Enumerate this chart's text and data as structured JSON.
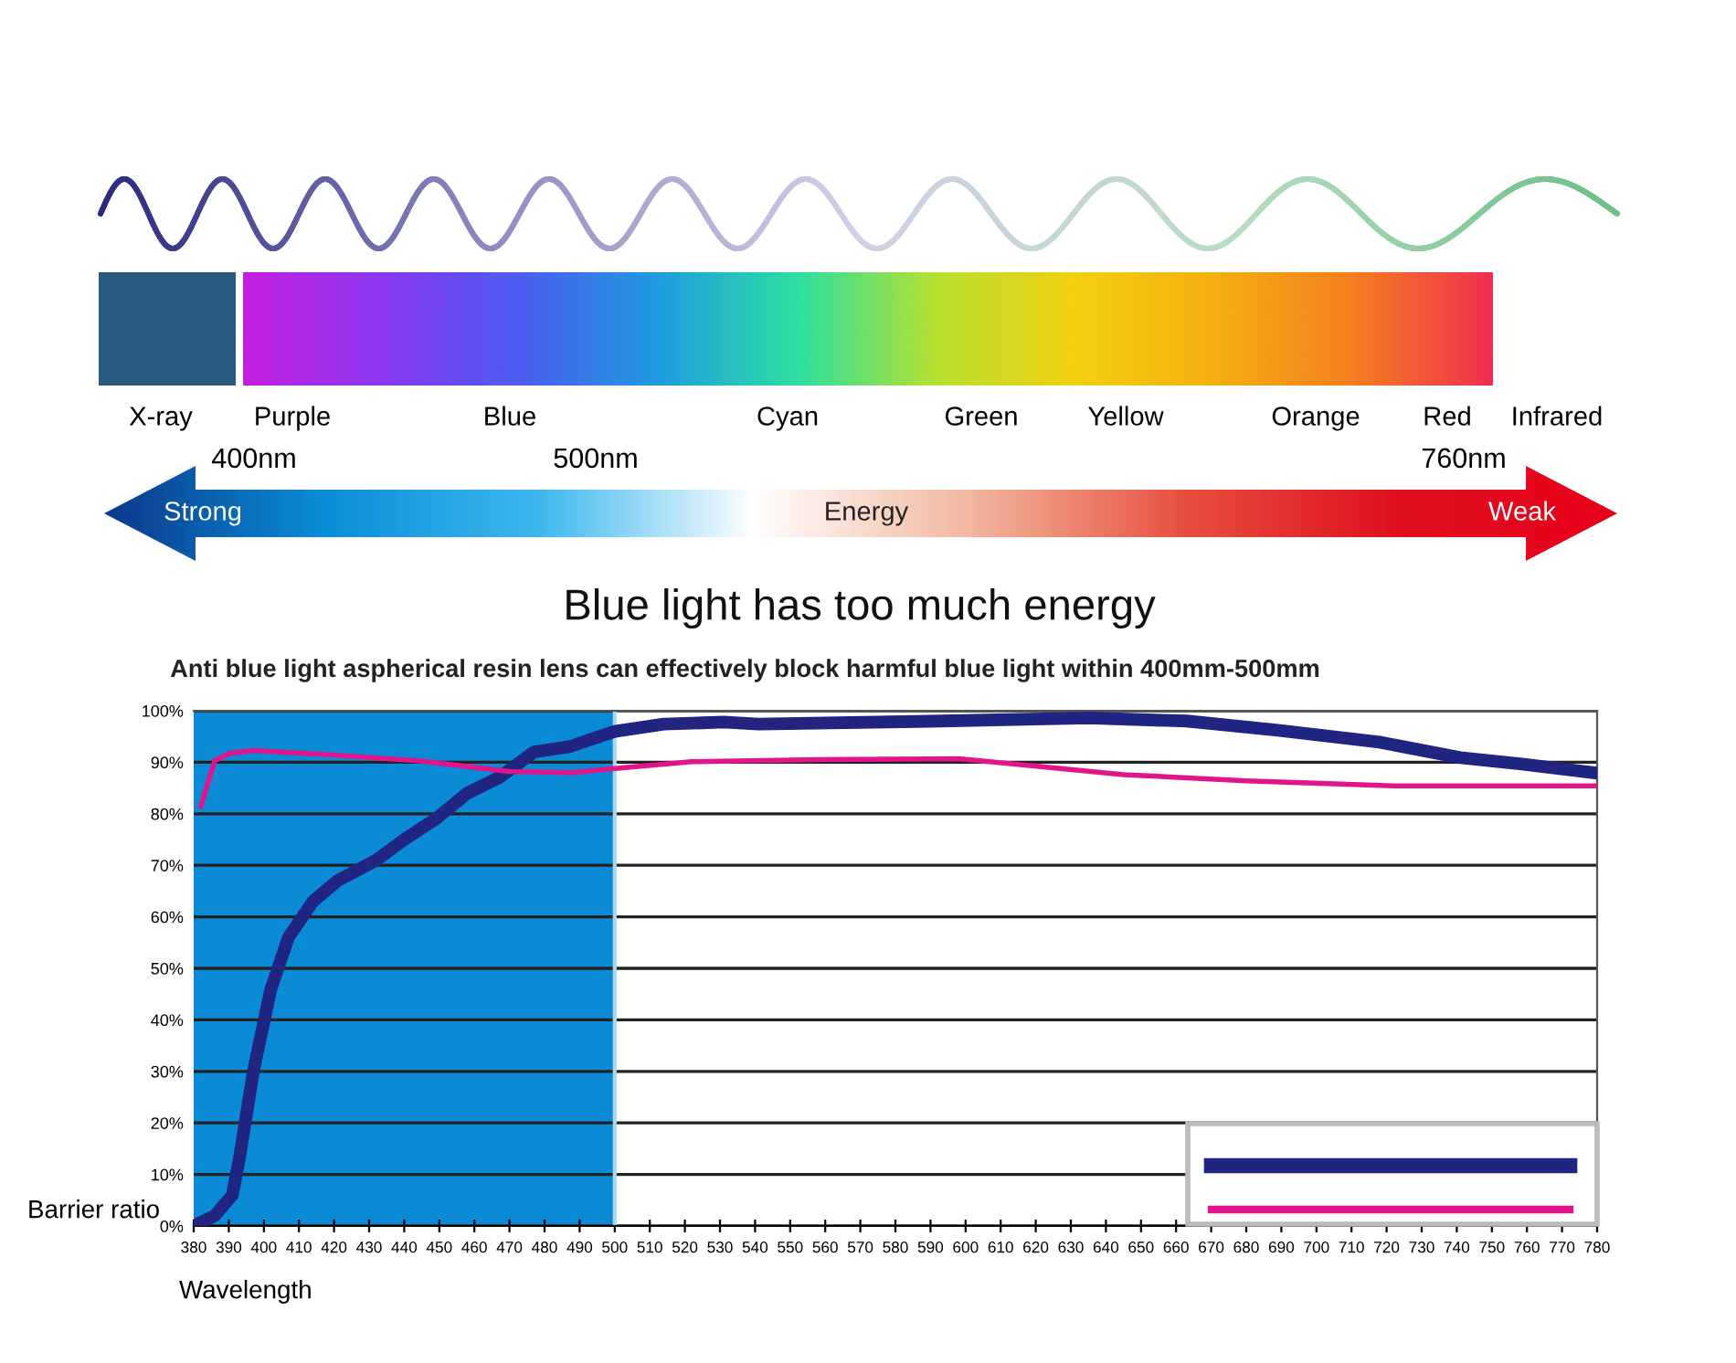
{
  "chart_data": {
    "type": "line",
    "title": "Blue light has too much energy",
    "subtitle": "Anti blue light aspherical resin lens can effectively block harmful blue light within 400mm-500mm",
    "xlabel": "Wavelength",
    "ylabel": "Barrier ratio",
    "annotations": [
      "X-ray",
      "Purple",
      "Blue",
      "Cyan",
      "Green",
      "Yellow",
      "Orange",
      "Red",
      "Infrared",
      "400nm",
      "500nm",
      "760nm",
      "Strong",
      "Energy",
      "Weak"
    ],
    "xlim": [
      380,
      780
    ],
    "xticks": [
      380,
      390,
      400,
      410,
      420,
      430,
      440,
      450,
      460,
      470,
      480,
      490,
      500,
      510,
      520,
      530,
      540,
      550,
      560,
      570,
      580,
      590,
      600,
      610,
      620,
      630,
      640,
      650,
      660,
      670,
      680,
      690,
      700,
      710,
      720,
      730,
      740,
      750,
      760,
      770,
      780
    ],
    "ylim": [
      0,
      100
    ],
    "yticks": [
      {
        "value": 0,
        "label": "0%"
      },
      {
        "value": 10,
        "label": "10%"
      },
      {
        "value": 20,
        "label": "20%"
      },
      {
        "value": 30,
        "label": "30%"
      },
      {
        "value": 40,
        "label": "40%"
      },
      {
        "value": 50,
        "label": "50%"
      },
      {
        "value": 60,
        "label": "60%"
      },
      {
        "value": 70,
        "label": "70%"
      },
      {
        "value": 80,
        "label": "80%"
      },
      {
        "value": 90,
        "label": "90%"
      },
      {
        "value": 100,
        "label": "100%"
      }
    ],
    "grid": "y",
    "bands": [
      {
        "axis": "x",
        "from": 380,
        "to": 500,
        "color": "#0b8ad6"
      }
    ],
    "ref_lines": [
      {
        "axis": "x",
        "value": 500,
        "color": "#a8d8f0"
      }
    ],
    "series": [
      {
        "color": "#1f2580",
        "x": [
          380,
          386,
          391,
          393,
          397,
          402,
          407,
          414,
          421,
          432,
          440,
          449,
          458,
          467,
          477,
          487,
          500,
          514,
          531,
          541,
          593,
          635,
          663,
          689,
          718,
          741,
          758,
          780
        ],
        "values": [
          0,
          2,
          6,
          13,
          30,
          46,
          56,
          63,
          67,
          71,
          75,
          79,
          84,
          87,
          92,
          93,
          96,
          97.4,
          97.8,
          97.4,
          98,
          98.6,
          98,
          96.2,
          93.9,
          90.9,
          89.7,
          87.9
        ]
      },
      {
        "color": "#e0158c",
        "x": [
          382,
          386,
          390,
          397,
          418,
          444,
          470,
          488,
          500,
          522,
          558,
          598,
          619,
          645,
          680,
          723,
          780
        ],
        "values": [
          81.4,
          90.3,
          91.7,
          92.3,
          91.5,
          90.3,
          88.2,
          88,
          88.8,
          90.1,
          90.5,
          90.7,
          89.3,
          87.6,
          86.4,
          85.4,
          85.4
        ]
      }
    ]
  }
}
